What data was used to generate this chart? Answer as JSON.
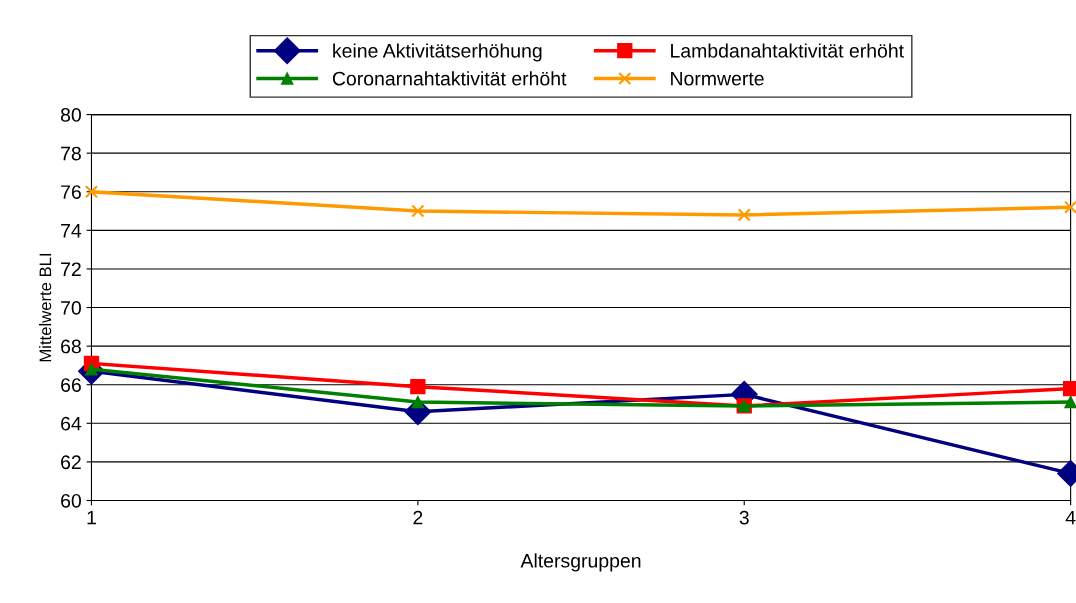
{
  "chart_data": {
    "type": "line",
    "xlabel": "Altersgruppen",
    "ylabel": "Mittelwerte BLI",
    "x": [
      1,
      2,
      3,
      4
    ],
    "xlim": [
      1,
      4
    ],
    "xticks": [
      1,
      2,
      3,
      4
    ],
    "ylim": [
      60,
      80
    ],
    "yticks": [
      60,
      62,
      64,
      66,
      68,
      70,
      72,
      74,
      76,
      78,
      80
    ],
    "grid": "y",
    "legend": "top",
    "series": [
      {
        "name": "keine Aktivitätserhöhung",
        "color": "#000080",
        "marker": "diamond",
        "values": [
          66.7,
          64.6,
          65.5,
          61.4
        ]
      },
      {
        "name": "Lambdanahtaktivität erhöht",
        "color": "#ff0000",
        "marker": "square",
        "values": [
          67.1,
          65.9,
          64.9,
          65.8
        ]
      },
      {
        "name": "Coronarnahtaktivität erhöht",
        "color": "#008000",
        "marker": "triangle",
        "values": [
          66.8,
          65.1,
          64.9,
          65.1
        ]
      },
      {
        "name": "Normwerte",
        "color": "#ff9900",
        "marker": "cross",
        "values": [
          76.0,
          75.0,
          74.8,
          75.2
        ]
      }
    ]
  }
}
